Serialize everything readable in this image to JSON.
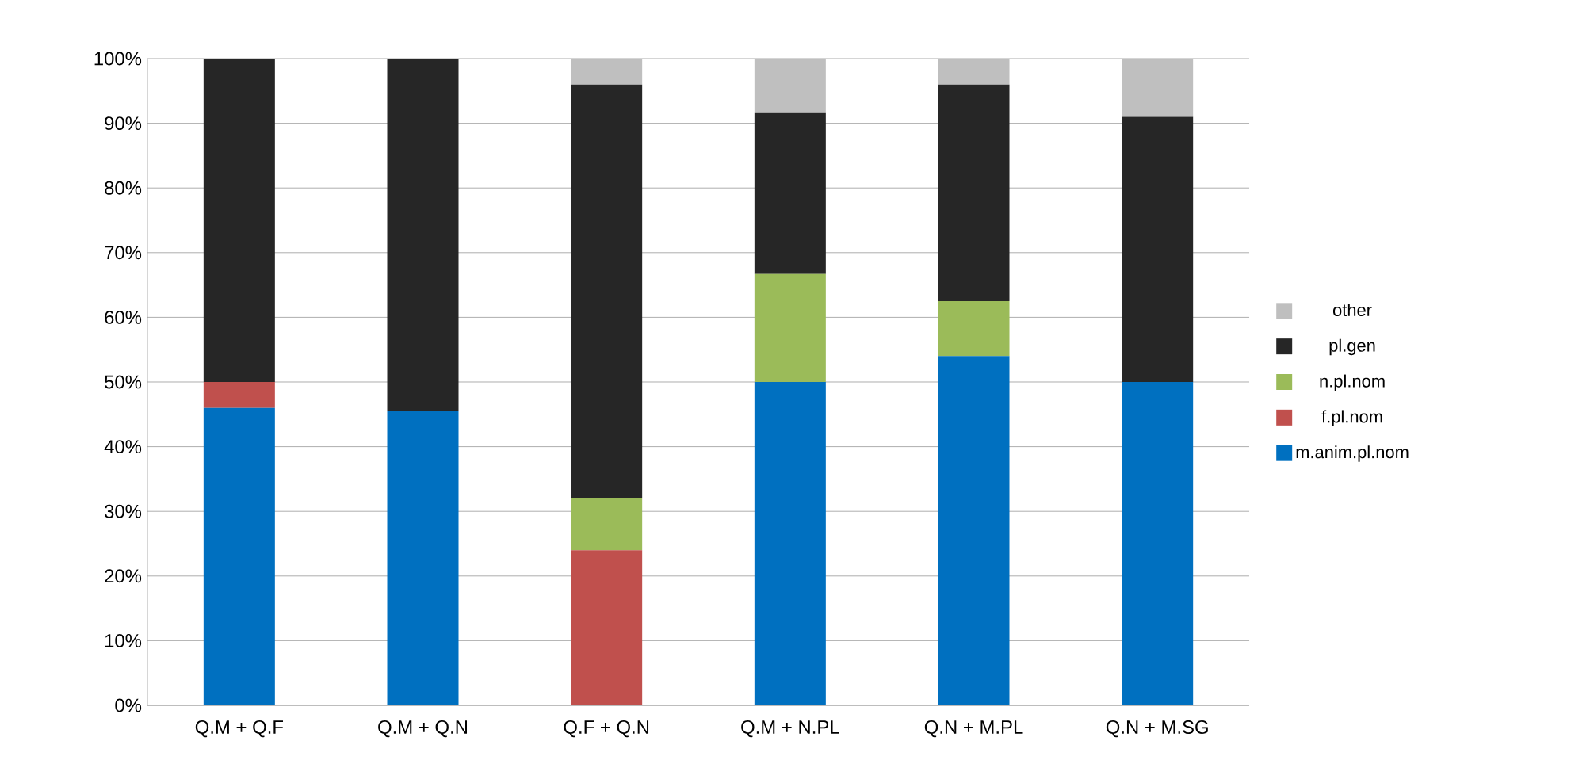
{
  "chart_data": {
    "type": "bar",
    "stacked": true,
    "categories": [
      "Q.M + Q.F",
      "Q.M + Q.N",
      "Q.F + Q.N",
      "Q.M + N.PL",
      "Q.N + M.PL",
      "Q.N + M.SG"
    ],
    "series": [
      {
        "name": "m.anim.pl.nom",
        "color": "#0070c0",
        "values": [
          46,
          45.5,
          0,
          50,
          54,
          50
        ]
      },
      {
        "name": "f.pl.nom",
        "color": "#c0504d",
        "values": [
          4,
          0,
          24,
          0,
          0,
          0
        ]
      },
      {
        "name": "n.pl.nom",
        "color": "#9bbb59",
        "values": [
          0,
          0,
          8,
          16.7,
          8.5,
          0
        ]
      },
      {
        "name": "pl.gen",
        "color": "#262626",
        "values": [
          50,
          54.5,
          64,
          25,
          33.5,
          41
        ]
      },
      {
        "name": "other",
        "color": "#bfbfbf",
        "values": [
          0,
          0,
          4,
          8.3,
          4,
          9
        ]
      }
    ],
    "ylim": [
      0,
      100
    ],
    "yticks": [
      {
        "value": 0,
        "label": "0%"
      },
      {
        "value": 10,
        "label": "10%"
      },
      {
        "value": 20,
        "label": "20%"
      },
      {
        "value": 30,
        "label": "30%"
      },
      {
        "value": 40,
        "label": "40%"
      },
      {
        "value": 50,
        "label": "50%"
      },
      {
        "value": 60,
        "label": "60%"
      },
      {
        "value": 70,
        "label": "70%"
      },
      {
        "value": 80,
        "label": "80%"
      },
      {
        "value": 90,
        "label": "90%"
      },
      {
        "value": 100,
        "label": "100%"
      }
    ],
    "grid": "y",
    "legend": "right"
  }
}
